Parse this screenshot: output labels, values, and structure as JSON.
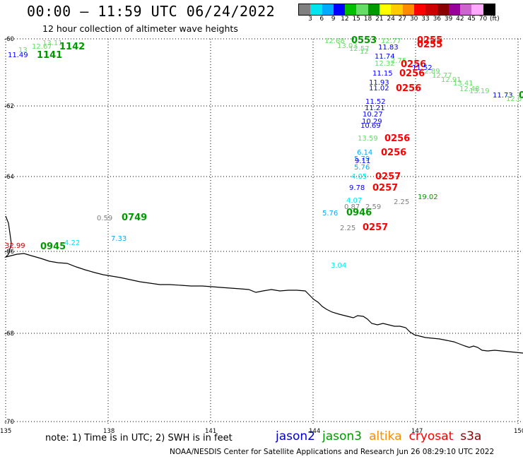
{
  "header": {
    "title": "00:00 – 11:59 UTC 06/24/2022",
    "subtitle": "12 hour collection of altimeter wave heights"
  },
  "colorbar": {
    "colors": [
      "#808080",
      "#00e5ee",
      "#00aaff",
      "#0000ff",
      "#00c000",
      "#66dd66",
      "#009900",
      "#ffff00",
      "#ffcc00",
      "#ff8c00",
      "#ff0000",
      "#cc0000",
      "#8b0000",
      "#990099",
      "#cc66cc",
      "#ffaaff",
      "#000000"
    ],
    "ticks": [
      "3",
      "6",
      "9",
      "12",
      "15",
      "18",
      "21",
      "24",
      "27",
      "30",
      "33",
      "36",
      "39",
      "42",
      "45",
      "70",
      "(ft)"
    ]
  },
  "map": {
    "lon_ticks": [
      "135",
      "138",
      "141",
      "144",
      "147",
      "150"
    ],
    "lat_ticks": [
      "-60",
      "-62",
      "-64",
      "-66",
      "-68",
      "-70"
    ],
    "coastline_color": "#000000",
    "grid": "dotted"
  },
  "observations": [
    {
      "text": "12.68",
      "color": "#66dd66"
    },
    {
      "text": "0553",
      "color": "#009900",
      "time": true
    },
    {
      "text": "12.77",
      "color": "#66dd66"
    },
    {
      "text": "0255",
      "color": "#ff0000",
      "time": true
    },
    {
      "text": "13.03",
      "color": "#66dd66"
    },
    {
      "text": "12.57",
      "color": "#66dd66"
    },
    {
      "text": "11.83",
      "color": "#0000ff"
    },
    {
      "text": "0255",
      "color": "#ff0000",
      "time": true
    },
    {
      "text": "12",
      "color": "#66dd66"
    },
    {
      "text": "11.74",
      "color": "#0000ff"
    },
    {
      "text": "12.32",
      "color": "#66dd66"
    },
    {
      "text": "2.75",
      "color": "#66dd66"
    },
    {
      "text": "0256",
      "color": "#ff0000",
      "time": true
    },
    {
      "text": "11.52",
      "color": "#0000ff"
    },
    {
      "text": "12.89",
      "color": "#66dd66"
    },
    {
      "text": "11.15",
      "color": "#0000ff"
    },
    {
      "text": "0256",
      "color": "#ff0000",
      "time": true
    },
    {
      "text": "12.77",
      "color": "#66dd66"
    },
    {
      "text": "11.93",
      "color": "#0000ff"
    },
    {
      "text": "12.91",
      "color": "#66dd66"
    },
    {
      "text": "11.02",
      "color": "#0000ff"
    },
    {
      "text": "0256",
      "color": "#ff0000",
      "time": true
    },
    {
      "text": "13.41",
      "color": "#66dd66"
    },
    {
      "text": "12.48",
      "color": "#66dd66"
    },
    {
      "text": "13.19",
      "color": "#66dd66"
    },
    {
      "text": "11.73",
      "color": "#0000ff"
    },
    {
      "text": "12.6",
      "color": "#66dd66"
    },
    {
      "text": "0",
      "color": "#009900",
      "time": true
    },
    {
      "text": "11.52",
      "color": "#0000ff"
    },
    {
      "text": "11.21",
      "color": "#0000ff"
    },
    {
      "text": "10.27",
      "color": "#0000ff"
    },
    {
      "text": "10.29",
      "color": "#0000ff"
    },
    {
      "text": "10.69",
      "color": "#0000ff"
    },
    {
      "text": "13.59",
      "color": "#66dd66"
    },
    {
      "text": "0256",
      "color": "#ff0000",
      "time": true
    },
    {
      "text": "6.14",
      "color": "#00aaff"
    },
    {
      "text": "0256",
      "color": "#ff0000",
      "time": true
    },
    {
      "text": "5.79",
      "color": "#00aaff"
    },
    {
      "text": "9.11",
      "color": "#0000ff"
    },
    {
      "text": "5.76",
      "color": "#00aaff"
    },
    {
      "text": "4.05",
      "color": "#00e5ee"
    },
    {
      "text": "0257",
      "color": "#ff0000",
      "time": true
    },
    {
      "text": "9.78",
      "color": "#0000ff"
    },
    {
      "text": "0257",
      "color": "#ff0000",
      "time": true
    },
    {
      "text": "19.02",
      "color": "#009900"
    },
    {
      "text": "4.07",
      "color": "#00e5ee"
    },
    {
      "text": "2.25",
      "color": "#808080"
    },
    {
      "text": "0.87",
      "color": "#808080"
    },
    {
      "text": "2.59",
      "color": "#808080"
    },
    {
      "text": "5.76",
      "color": "#00aaff"
    },
    {
      "text": "0946",
      "color": "#009900",
      "time": true
    },
    {
      "text": "2.25",
      "color": "#808080"
    },
    {
      "text": "0257",
      "color": "#ff0000",
      "time": true
    },
    {
      "text": "3.04",
      "color": "#00e5ee"
    },
    {
      "text": "0.59",
      "color": "#808080"
    },
    {
      "text": "0749",
      "color": "#009900",
      "time": true
    },
    {
      "text": "7.33",
      "color": "#00aaff"
    },
    {
      "text": "32.99",
      "color": "#cc0000"
    },
    {
      "text": "0945",
      "color": "#009900",
      "time": true
    },
    {
      "text": "4.22",
      "color": "#00e5ee"
    },
    {
      "text": "13.11",
      "color": "#66dd66"
    },
    {
      "text": "12.67",
      "color": "#66dd66"
    },
    {
      "text": "1142",
      "color": "#009900",
      "time": true
    },
    {
      "text": "13",
      "color": "#66dd66"
    },
    {
      "text": "11.49",
      "color": "#0000ff"
    },
    {
      "text": "1141",
      "color": "#009900",
      "time": true
    }
  ],
  "footer": {
    "note": "note:  1) Time is in UTC;  2) SWH is in feet",
    "legend": [
      {
        "label": "jason2",
        "color": "#0000cc"
      },
      {
        "label": "jason3",
        "color": "#009900"
      },
      {
        "label": "altika",
        "color": "#ff8c00"
      },
      {
        "label": "cryosat",
        "color": "#ff0000"
      },
      {
        "label": "s3a",
        "color": "#8b0000"
      }
    ],
    "credit": "NOAA/NESDIS Center for Satellite Applications and Research    Jun 26 08:29:10 UTC 2022"
  }
}
